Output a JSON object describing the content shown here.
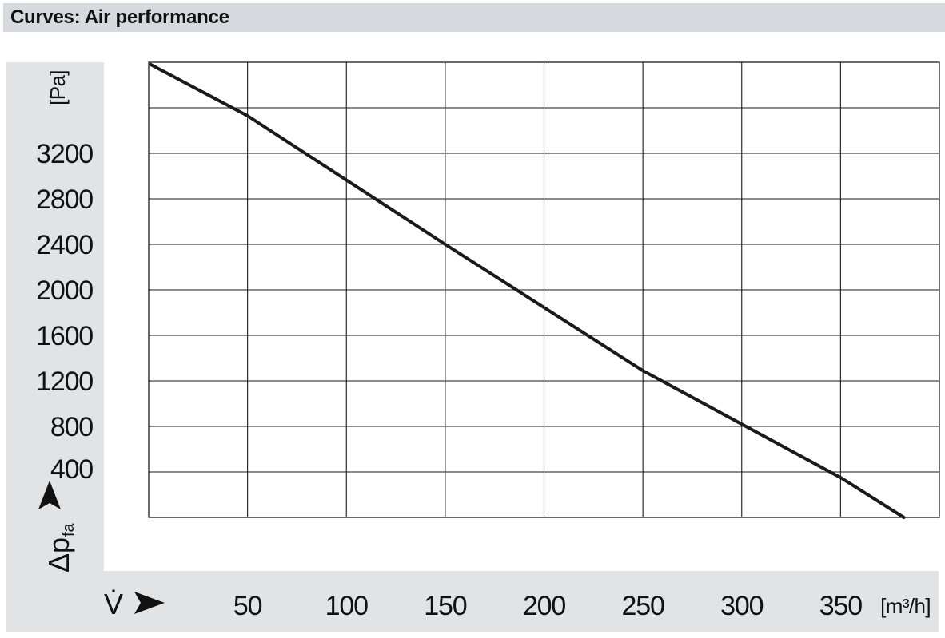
{
  "header": {
    "title": "Curves: Air performance"
  },
  "chart_data": {
    "type": "line",
    "title": "",
    "xlabel": "V̇",
    "ylabel": "Δp",
    "ylabel_subscript": "fa",
    "x_unit": "[m³/h]",
    "y_unit": "[Pa]",
    "xlim": [
      0,
      400
    ],
    "ylim": [
      0,
      4000
    ],
    "x_ticks": [
      50,
      100,
      150,
      200,
      250,
      300,
      350
    ],
    "y_ticks": [
      400,
      800,
      1200,
      1600,
      2000,
      2400,
      2800,
      3200
    ],
    "grid": true,
    "series": [
      {
        "values": [
          {
            "x": 1,
            "y": 3980
          },
          {
            "x": 50,
            "y": 3530
          },
          {
            "x": 150,
            "y": 2400
          },
          {
            "x": 250,
            "y": 1290
          },
          {
            "x": 350,
            "y": 350
          },
          {
            "x": 382,
            "y": 0
          }
        ]
      }
    ],
    "colors": {
      "line": "#1a1a1a",
      "grid": "#1a1a1a",
      "panel": "#e2e3e5",
      "title_bar": "#d6d9dd"
    }
  }
}
